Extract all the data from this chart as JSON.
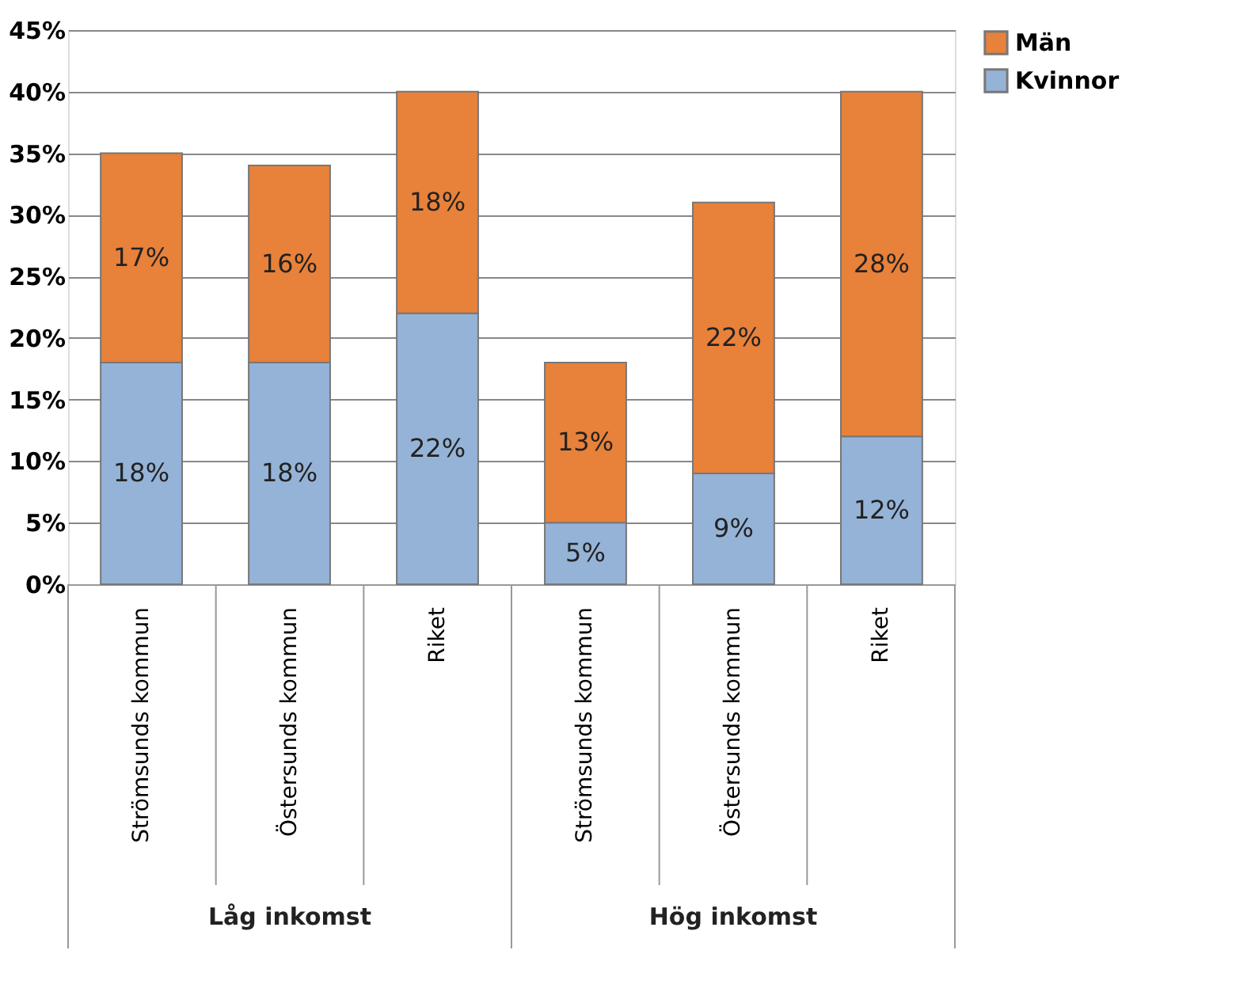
{
  "chart_data": {
    "type": "bar",
    "stacked": true,
    "categories": [
      "Strömsunds kommun",
      "Östersunds kommun",
      "Riket",
      "Strömsunds kommun",
      "Östersunds kommun",
      "Riket"
    ],
    "series": [
      {
        "name": "Kvinnor",
        "color": "#95b3d7",
        "values": [
          18,
          18,
          22,
          5,
          9,
          12
        ]
      },
      {
        "name": "Män",
        "color": "#e8813a",
        "values": [
          17,
          16,
          18,
          13,
          22,
          28
        ]
      }
    ],
    "ylim": [
      0,
      45
    ],
    "yticks": [
      {
        "value": 0,
        "label": "0%"
      },
      {
        "value": 5,
        "label": "5%"
      },
      {
        "value": 10,
        "label": "10%"
      },
      {
        "value": 15,
        "label": "15%"
      },
      {
        "value": 20,
        "label": "20%"
      },
      {
        "value": 25,
        "label": "25%"
      },
      {
        "value": 30,
        "label": "30%"
      },
      {
        "value": 35,
        "label": "35%"
      },
      {
        "value": 40,
        "label": "40%"
      },
      {
        "value": 45,
        "label": "45%"
      }
    ],
    "value_labels": [
      [
        "18%",
        "18%",
        "22%",
        "5%",
        "9%",
        "12%"
      ],
      [
        "17%",
        "16%",
        "18%",
        "13%",
        "22%",
        "28%"
      ]
    ],
    "annotations": [
      "Låg inkomst",
      "Hög inkomst"
    ],
    "grid": "y",
    "legend": "right"
  }
}
